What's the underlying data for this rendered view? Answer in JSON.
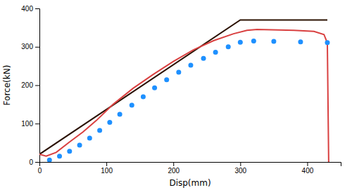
{
  "chart_data": {
    "type": "line",
    "title": "",
    "xlabel": "Disp(mm)",
    "ylabel": "Force(kN)",
    "xlim": [
      0,
      450
    ],
    "ylim": [
      0,
      400
    ],
    "xticks": [
      0,
      100,
      200,
      300,
      400
    ],
    "yticks": [
      0,
      100,
      200,
      300,
      400
    ],
    "grid": false,
    "series": [
      {
        "type": "line",
        "line_style": "solid",
        "color": "#2a1000",
        "x": [
          0,
          300,
          430
        ],
        "values": [
          20,
          370,
          370
        ]
      },
      {
        "type": "line",
        "line_style": "solid",
        "color": "#d94040",
        "x": [
          0,
          10,
          25,
          45,
          65,
          85,
          110,
          140,
          170,
          200,
          230,
          260,
          290,
          310,
          325,
          380,
          410,
          425,
          430,
          432
        ],
        "values": [
          20,
          15,
          25,
          52,
          78,
          108,
          150,
          192,
          228,
          262,
          292,
          316,
          334,
          343,
          345,
          343,
          340,
          332,
          310,
          0
        ]
      },
      {
        "type": "scatter",
        "marker": "circle",
        "color": "#1e90ff",
        "x": [
          15,
          30,
          45,
          60,
          75,
          90,
          105,
          120,
          138,
          155,
          172,
          190,
          208,
          226,
          245,
          263,
          282,
          300,
          320,
          350,
          390,
          430
        ],
        "values": [
          5,
          15,
          28,
          44,
          62,
          82,
          103,
          124,
          148,
          170,
          193,
          214,
          234,
          252,
          270,
          286,
          300,
          312,
          315,
          314,
          313,
          311
        ]
      }
    ]
  }
}
